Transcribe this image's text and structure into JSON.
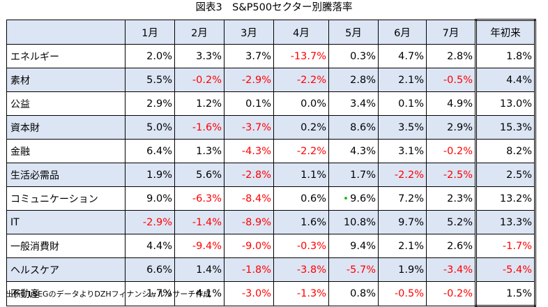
{
  "title": "図表3　S&P500セクター別騰落率",
  "columns": [
    "",
    "1月",
    "2月",
    "3月",
    "4月",
    "5月",
    "6月",
    "7月",
    "年初来"
  ],
  "rows": [
    {
      "label": "エネルギー",
      "values": [
        "2.0%",
        "3.3%",
        "3.7%",
        "-13.7%",
        "0.3%",
        "4.7%",
        "2.8%",
        "1.8%"
      ]
    },
    {
      "label": "素材",
      "values": [
        "5.5%",
        "-0.2%",
        "-2.9%",
        "-2.2%",
        "2.8%",
        "2.1%",
        "-0.5%",
        "4.4%"
      ]
    },
    {
      "label": "公益",
      "values": [
        "2.9%",
        "1.2%",
        "0.1%",
        "0.0%",
        "3.4%",
        "0.1%",
        "4.9%",
        "13.0%"
      ]
    },
    {
      "label": "資本財",
      "values": [
        "5.0%",
        "-1.6%",
        "-3.7%",
        "0.2%",
        "8.6%",
        "3.5%",
        "2.9%",
        "15.3%"
      ]
    },
    {
      "label": "金融",
      "values": [
        "6.4%",
        "1.3%",
        "-4.3%",
        "-2.2%",
        "4.3%",
        "3.1%",
        "-0.2%",
        "8.2%"
      ]
    },
    {
      "label": "生活必需品",
      "values": [
        "1.9%",
        "5.6%",
        "-2.8%",
        "1.1%",
        "1.7%",
        "-2.2%",
        "-2.5%",
        "2.5%"
      ]
    },
    {
      "label": "コミュニケーション",
      "values": [
        "9.0%",
        "-6.3%",
        "-8.4%",
        "0.6%",
        "9.6%",
        "7.2%",
        "2.3%",
        "13.2%"
      ]
    },
    {
      "label": "IT",
      "values": [
        "-2.9%",
        "-1.4%",
        "-8.9%",
        "1.6%",
        "10.8%",
        "9.7%",
        "5.2%",
        "13.3%"
      ]
    },
    {
      "label": "一般消費財",
      "values": [
        "4.4%",
        "-9.4%",
        "-9.0%",
        "-0.3%",
        "9.4%",
        "2.1%",
        "2.6%",
        "-1.7%"
      ]
    },
    {
      "label": "ヘルスケア",
      "values": [
        "6.6%",
        "1.4%",
        "-1.8%",
        "-3.8%",
        "-5.7%",
        "1.9%",
        "-3.4%",
        "-5.4%"
      ]
    },
    {
      "label": "不動産",
      "values": [
        "1.7%",
        "4.1%",
        "-3.0%",
        "-1.3%",
        "0.8%",
        "-0.5%",
        "-0.2%",
        "1.5%"
      ]
    }
  ],
  "colors": {
    "negative": "#ff0000",
    "positive": "#000000",
    "band": "#dce5f4"
  },
  "source": "出所：LSEGのデータよりDZHフィナンシャルリサーチ作成"
}
